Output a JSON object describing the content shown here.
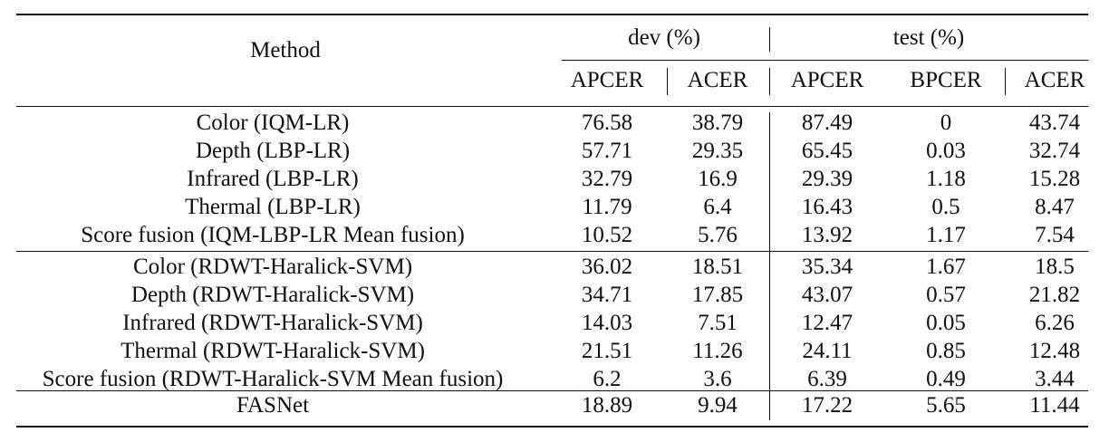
{
  "table": {
    "header": {
      "method": "Method",
      "groups": [
        {
          "label": "dev (%)"
        },
        {
          "label": "test (%)"
        }
      ],
      "columns": [
        "APCER",
        "ACER",
        "APCER",
        "BPCER",
        "ACER"
      ]
    },
    "rows": [
      {
        "method": "Color (IQM-LR)",
        "values": [
          "76.58",
          "38.79",
          "87.49",
          "0",
          "43.74"
        ]
      },
      {
        "method": "Depth (LBP-LR)",
        "values": [
          "57.71",
          "29.35",
          "65.45",
          "0.03",
          "32.74"
        ]
      },
      {
        "method": "Infrared (LBP-LR)",
        "values": [
          "32.79",
          "16.9",
          "29.39",
          "1.18",
          "15.28"
        ]
      },
      {
        "method": "Thermal (LBP-LR)",
        "values": [
          "11.79",
          "6.4",
          "16.43",
          "0.5",
          "8.47"
        ]
      },
      {
        "method": "Score fusion (IQM-LBP-LR Mean fusion)",
        "values": [
          "10.52",
          "5.76",
          "13.92",
          "1.17",
          "7.54"
        ]
      },
      {
        "method": "Color (RDWT-Haralick-SVM)",
        "values": [
          "36.02",
          "18.51",
          "35.34",
          "1.67",
          "18.5"
        ]
      },
      {
        "method": "Depth (RDWT-Haralick-SVM)",
        "values": [
          "34.71",
          "17.85",
          "43.07",
          "0.57",
          "21.82"
        ]
      },
      {
        "method": "Infrared (RDWT-Haralick-SVM)",
        "values": [
          "14.03",
          "7.51",
          "12.47",
          "0.05",
          "6.26"
        ]
      },
      {
        "method": "Thermal (RDWT-Haralick-SVM)",
        "values": [
          "21.51",
          "11.26",
          "24.11",
          "0.85",
          "12.48"
        ]
      },
      {
        "method": "Score fusion (RDWT-Haralick-SVM Mean fusion)",
        "values": [
          "6.2",
          "3.6",
          "6.39",
          "0.49",
          "3.44"
        ]
      },
      {
        "method": "FASNet",
        "values": [
          "18.89",
          "9.94",
          "17.22",
          "5.65",
          "11.44"
        ]
      }
    ]
  }
}
